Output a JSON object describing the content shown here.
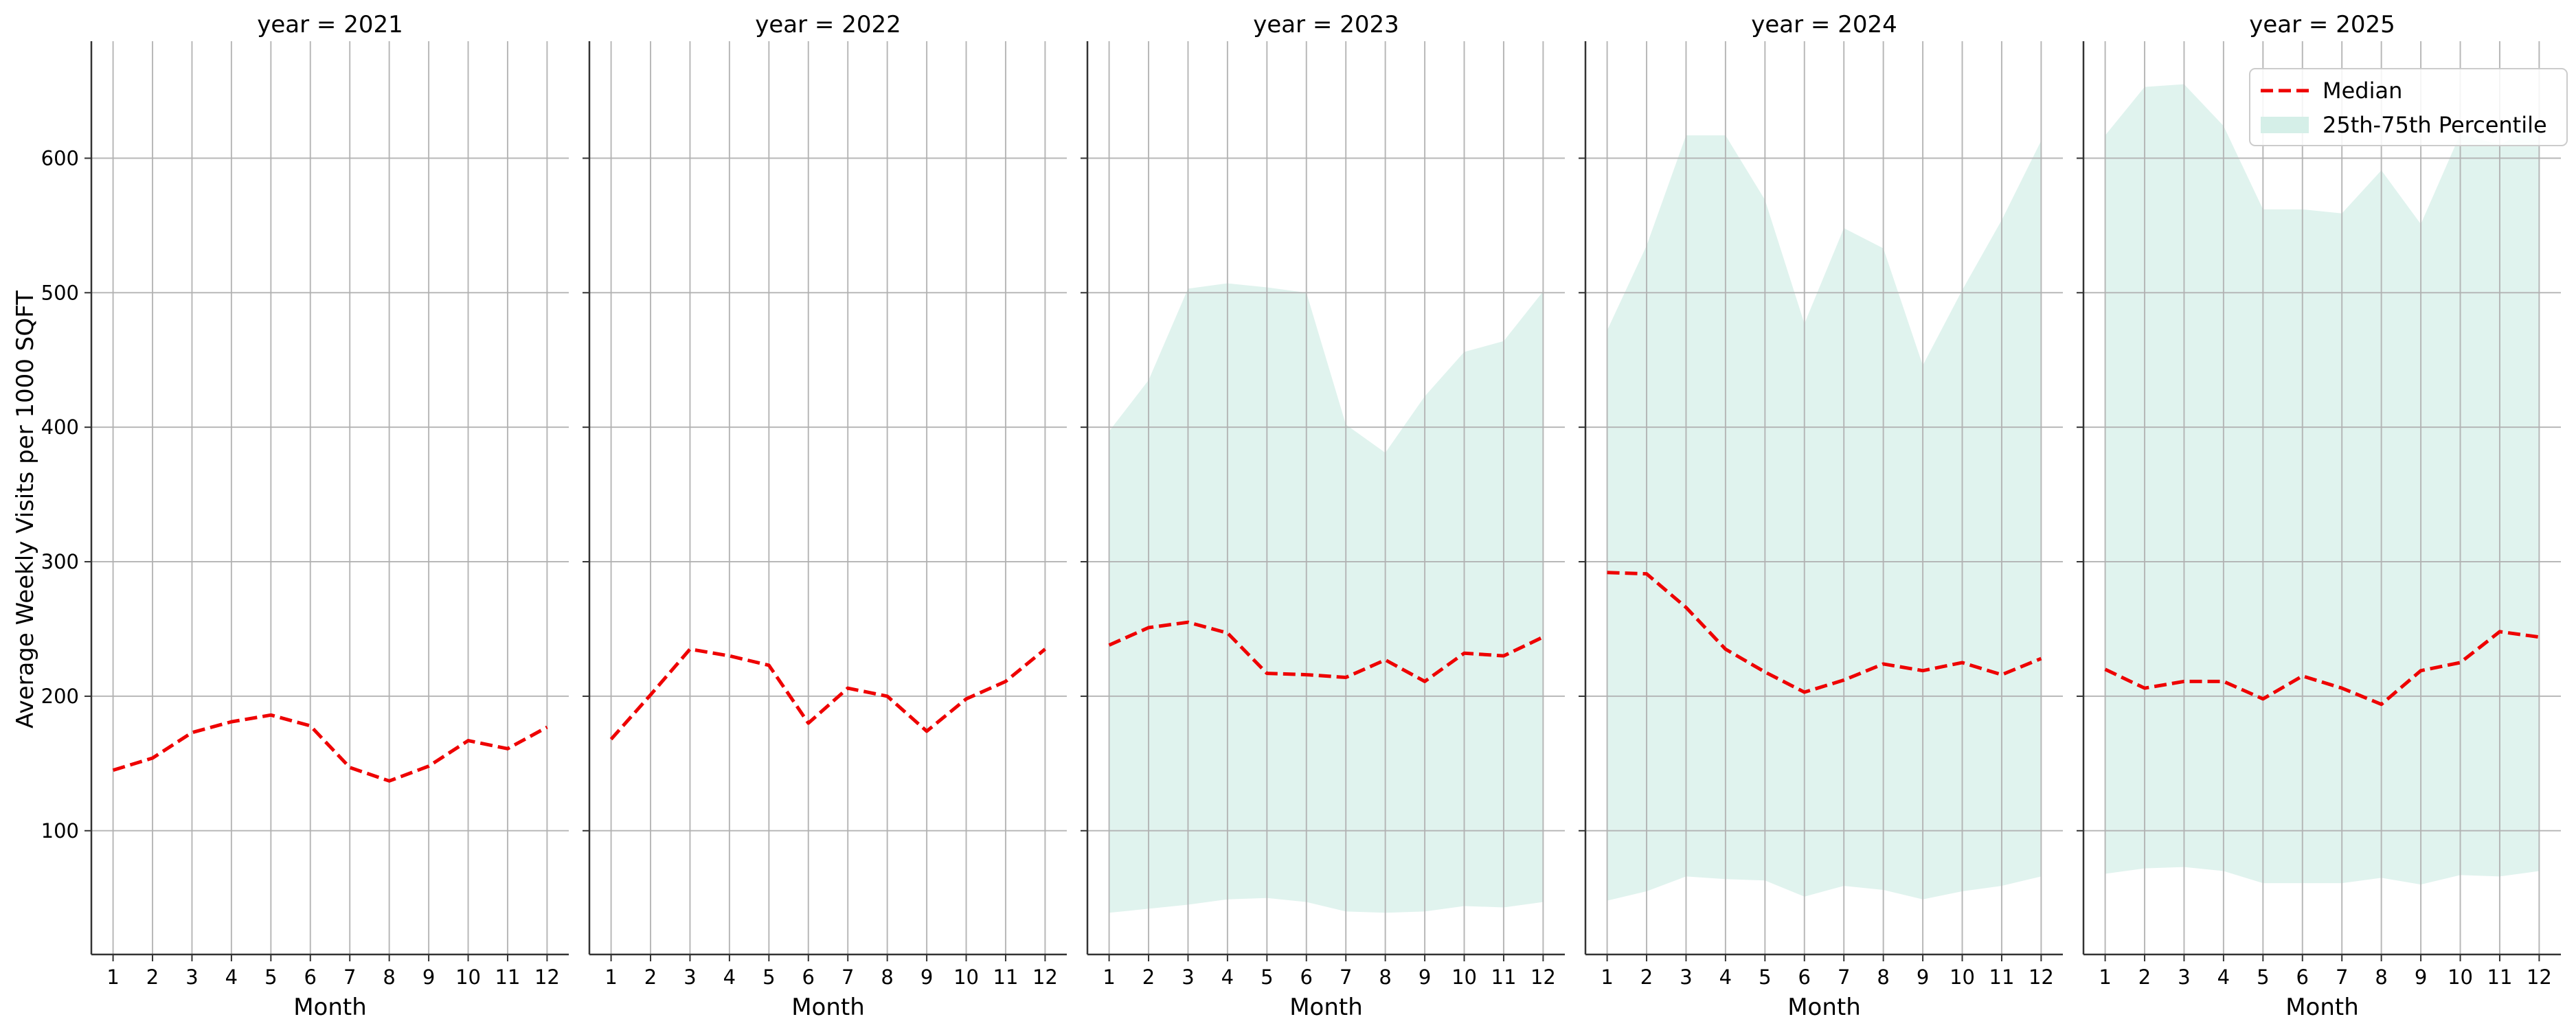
{
  "chart_data": {
    "type": "line",
    "ylabel": "Average Weekly Visits per 1000 SQFT",
    "xlabel": "Month",
    "ylim": [
      8,
      687
    ],
    "xlim": [
      0.45,
      12.55
    ],
    "yticks": [
      100,
      200,
      300,
      400,
      500,
      600
    ],
    "x": [
      1,
      2,
      3,
      4,
      5,
      6,
      7,
      8,
      9,
      10,
      11,
      12
    ],
    "grid": true,
    "colors": {
      "median": "#ee0000",
      "band": "#d5efe8",
      "grid": "#b0b0b0"
    },
    "legend": {
      "placement": "top-right",
      "entries": [
        {
          "name": "Median",
          "kind": "dashed-line"
        },
        {
          "name": "25th-75th Percentile",
          "kind": "band"
        }
      ]
    },
    "panels": [
      {
        "title": "year = 2021",
        "median": [
          145,
          154,
          173,
          181,
          186,
          178,
          147,
          137,
          148,
          167,
          161,
          177
        ],
        "p25": null,
        "p75": null
      },
      {
        "title": "year = 2022",
        "median": [
          168,
          201,
          235,
          230,
          223,
          180,
          206,
          200,
          174,
          198,
          211,
          235
        ],
        "p25": null,
        "p75": null
      },
      {
        "title": "year = 2023",
        "median": [
          238,
          251,
          255,
          247,
          217,
          216,
          214,
          227,
          211,
          232,
          230,
          244
        ],
        "p25": [
          39,
          42,
          45,
          49,
          50,
          47,
          40,
          39,
          40,
          44,
          43,
          47
        ],
        "p75": [
          397,
          435,
          503,
          507,
          504,
          500,
          402,
          381,
          423,
          456,
          464,
          501
        ]
      },
      {
        "title": "year = 2024",
        "median": [
          292,
          291,
          266,
          235,
          218,
          203,
          212,
          224,
          219,
          225,
          216,
          228
        ],
        "p25": [
          48,
          55,
          66,
          64,
          63,
          51,
          59,
          56,
          49,
          55,
          59,
          66
        ],
        "p75": [
          472,
          535,
          617,
          617,
          569,
          477,
          548,
          533,
          446,
          502,
          554,
          613
        ]
      },
      {
        "title": "year = 2025",
        "median": [
          220,
          206,
          211,
          211,
          198,
          215,
          206,
          194,
          219,
          225,
          248,
          244
        ],
        "p25": [
          68,
          72,
          73,
          70,
          61,
          61,
          61,
          65,
          60,
          67,
          66,
          70
        ],
        "p75": [
          617,
          653,
          655,
          624,
          562,
          562,
          559,
          591,
          551,
          618,
          610,
          625
        ]
      }
    ]
  }
}
